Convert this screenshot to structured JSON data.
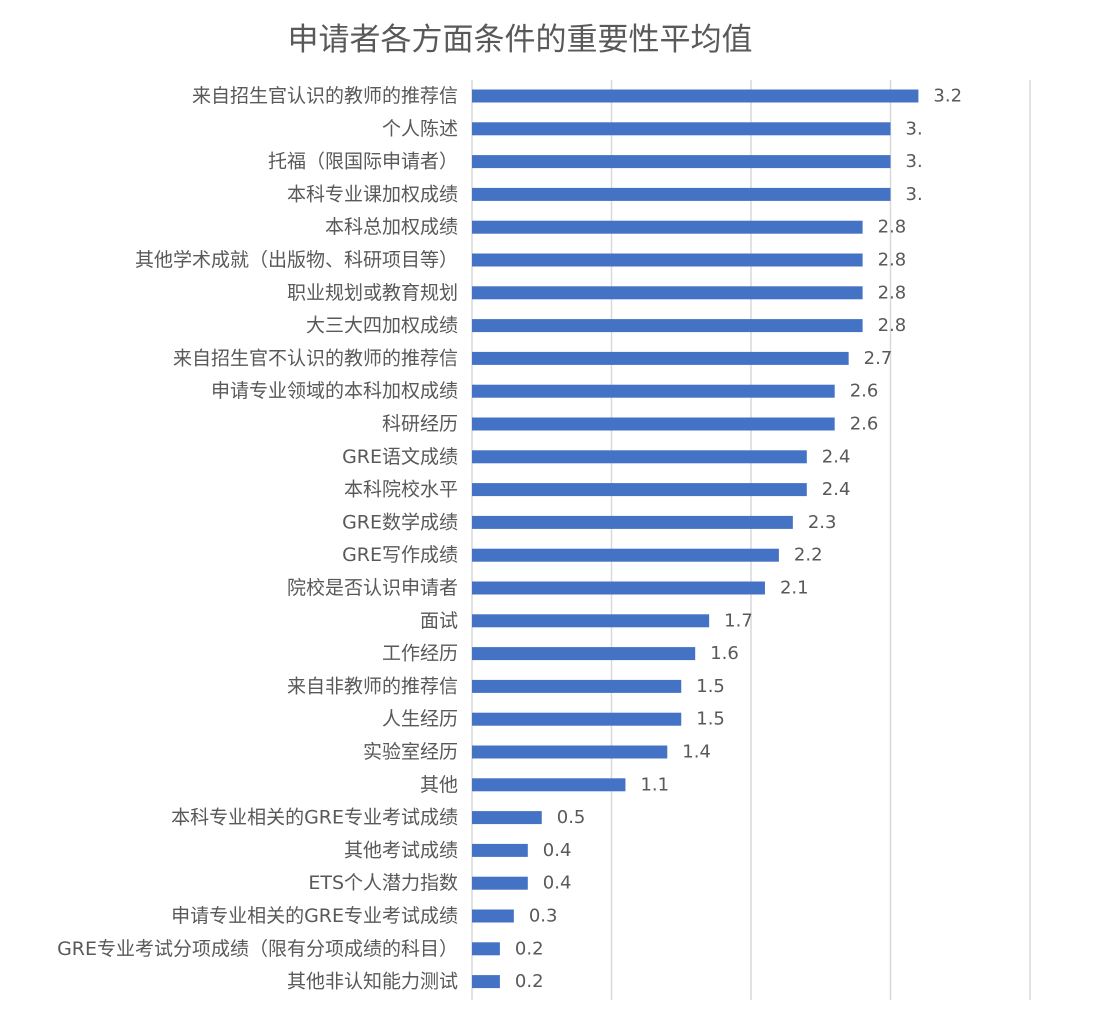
{
  "chart_data": {
    "type": "bar",
    "orientation": "horizontal",
    "title": "申请者各方面条件的重要性平均值",
    "categories": [
      "来自招生官认识的教师的推荐信",
      "个人陈述",
      "托福（限国际申请者）",
      "本科专业课加权成绩",
      "本科总加权成绩",
      "其他学术成就（出版物、科研项目等）",
      "职业规划或教育规划",
      "大三大四加权成绩",
      "来自招生官不认识的教师的推荐信",
      "申请专业领域的本科加权成绩",
      "科研经历",
      "GRE语文成绩",
      "本科院校水平",
      "GRE数学成绩",
      "GRE写作成绩",
      "院校是否认识申请者",
      "面试",
      "工作经历",
      "来自非教师的推荐信",
      "人生经历",
      "实验室经历",
      "其他",
      "本科专业相关的GRE专业考试成绩",
      "其他考试成绩",
      "ETS个人潜力指数",
      "申请专业相关的GRE专业考试成绩",
      "GRE专业考试分项成绩（限有分项成绩的科目）",
      "其他非认知能力测试"
    ],
    "values": [
      3.2,
      3.0,
      3.0,
      3.0,
      2.8,
      2.8,
      2.8,
      2.8,
      2.7,
      2.6,
      2.6,
      2.4,
      2.4,
      2.3,
      2.2,
      2.1,
      1.7,
      1.6,
      1.5,
      1.5,
      1.4,
      1.1,
      0.5,
      0.4,
      0.4,
      0.3,
      0.2,
      0.2
    ],
    "data_labels": [
      "3.2",
      "3.",
      "3.",
      "3.",
      "2.8",
      "2.8",
      "2.8",
      "2.8",
      "2.7",
      "2.6",
      "2.6",
      "2.4",
      "2.4",
      "2.3",
      "2.2",
      "2.1",
      "1.7",
      "1.6",
      "1.5",
      "1.5",
      "1.4",
      "1.1",
      "0.5",
      "0.4",
      "0.4",
      "0.3",
      "0.2",
      "0.2"
    ],
    "xlim": [
      0,
      4
    ],
    "grid": true,
    "legend": "none",
    "bar_color": "#4472C4",
    "grid_color": "#D9D9D9"
  }
}
